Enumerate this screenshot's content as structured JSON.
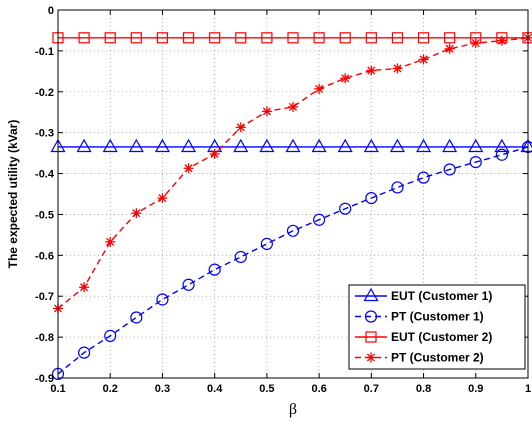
{
  "chart_data": {
    "type": "line",
    "xlabel": "β",
    "ylabel": "The expected utility (kVar)",
    "xlim": [
      0.1,
      1.0
    ],
    "ylim": [
      -0.9,
      0
    ],
    "xticks": [
      "0.1",
      "0.2",
      "0.3",
      "0.4",
      "0.5",
      "0.6",
      "0.7",
      "0.8",
      "0.9",
      "1"
    ],
    "yticks": [
      "-0.9",
      "-0.8",
      "-0.7",
      "-0.6",
      "-0.5",
      "-0.4",
      "-0.3",
      "-0.2",
      "-0.1",
      "0"
    ],
    "grid": true,
    "legend_position": "bottom-right",
    "x": [
      0.1,
      0.15,
      0.2,
      0.25,
      0.3,
      0.35,
      0.4,
      0.45,
      0.5,
      0.55,
      0.6,
      0.65,
      0.7,
      0.75,
      0.8,
      0.85,
      0.9,
      0.95,
      1.0
    ],
    "series": [
      {
        "name": "EUT (Customer 1)",
        "color": "#0000ff",
        "line": "solid",
        "marker": "triangle",
        "values": [
          -0.335,
          -0.335,
          -0.335,
          -0.335,
          -0.335,
          -0.335,
          -0.335,
          -0.335,
          -0.335,
          -0.335,
          -0.335,
          -0.335,
          -0.335,
          -0.335,
          -0.335,
          -0.335,
          -0.335,
          -0.335,
          -0.335
        ]
      },
      {
        "name": "PT (Customer 1)",
        "color": "#0000ff",
        "line": "dashed",
        "marker": "circle",
        "values": [
          -0.89,
          -0.838,
          -0.797,
          -0.752,
          -0.708,
          -0.672,
          -0.635,
          -0.604,
          -0.572,
          -0.54,
          -0.513,
          -0.486,
          -0.46,
          -0.434,
          -0.41,
          -0.39,
          -0.372,
          -0.354,
          -0.335
        ]
      },
      {
        "name": "EUT (Customer 2)",
        "color": "#ff0000",
        "line": "solid",
        "marker": "square",
        "values": [
          -0.068,
          -0.068,
          -0.068,
          -0.068,
          -0.068,
          -0.068,
          -0.068,
          -0.068,
          -0.068,
          -0.068,
          -0.068,
          -0.068,
          -0.068,
          -0.068,
          -0.068,
          -0.068,
          -0.068,
          -0.068,
          -0.068
        ]
      },
      {
        "name": "PT (Customer 2)",
        "color": "#ff0000",
        "line": "dashed",
        "marker": "asterisk",
        "values": [
          -0.73,
          -0.678,
          -0.567,
          -0.497,
          -0.46,
          -0.387,
          -0.352,
          -0.287,
          -0.248,
          -0.237,
          -0.193,
          -0.167,
          -0.148,
          -0.143,
          -0.121,
          -0.095,
          -0.081,
          -0.075,
          -0.068
        ]
      }
    ]
  }
}
